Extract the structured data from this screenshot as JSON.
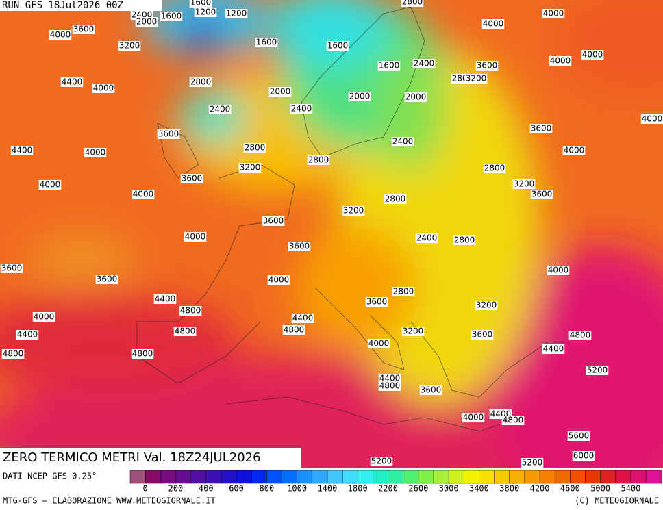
{
  "header": {
    "run": "RUN GFS 18Jul2026 00Z",
    "title": "ZERO TERMICO METRI Val. 18Z24JUL2026"
  },
  "contour_labels": [
    1200,
    1600,
    2400,
    2000,
    1600,
    1200,
    2800,
    4000,
    4000,
    4000,
    3600,
    3200,
    1600,
    1600,
    4000,
    4000,
    2400,
    3600,
    1600,
    4400,
    4000,
    2800,
    2000,
    2800,
    3200,
    2000,
    2000,
    2400,
    2400,
    4000,
    3600,
    3600,
    2400,
    4400,
    4000,
    2800,
    4000,
    2800,
    3200,
    2800,
    3600,
    4000,
    3200,
    4000,
    3600,
    2800,
    3200,
    3600,
    4000,
    2400,
    2800,
    3600,
    3600,
    4000,
    3600,
    4000,
    4400,
    2800,
    3600,
    3200,
    4800,
    4000,
    4400,
    4800,
    4800,
    3200,
    3600,
    4800,
    4400,
    4800,
    4800,
    4000,
    4400,
    5200,
    4400,
    4800,
    3600,
    4000,
    4400,
    4800,
    5600,
    6000,
    5200,
    5200
  ],
  "colorbar": {
    "colors": [
      "#a0527a",
      "#8a0a6a",
      "#7a0a80",
      "#680c92",
      "#5410a2",
      "#3c10b4",
      "#2410c8",
      "#1010dc",
      "#0028f0",
      "#0050f8",
      "#0070ff",
      "#1890ff",
      "#30a8ff",
      "#40c4ff",
      "#40dcff",
      "#30f0f0",
      "#20f0c8",
      "#30f0a0",
      "#50f070",
      "#80f048",
      "#a8f038",
      "#d0f020",
      "#f0f000",
      "#f8e000",
      "#f8c800",
      "#f8b000",
      "#f89800",
      "#f88000",
      "#f06800",
      "#f05000",
      "#e83800",
      "#e02020",
      "#e01048",
      "#e01070",
      "#e01098"
    ],
    "ticks": [
      0,
      200,
      400,
      600,
      800,
      1000,
      1400,
      1800,
      2200,
      2600,
      3000,
      3400,
      3800,
      4200,
      4600,
      5000,
      5400
    ]
  },
  "footer": {
    "source": "DATI NCEP GFS 0.25°",
    "credit": "MTG-GFS — ELABORAZIONE WWW.METEOGIORNALE.IT",
    "copyright": "(C) METEOGIORNALE"
  }
}
